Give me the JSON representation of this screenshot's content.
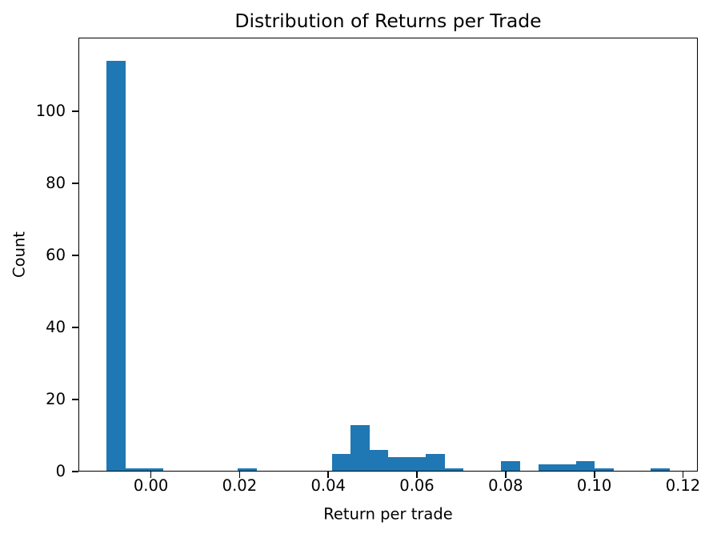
{
  "figure": {
    "title": "Distribution of Returns per Trade",
    "xlabel": "Return per trade",
    "ylabel": "Count",
    "background_color": "#ffffff",
    "bar_color": "#1f77b4",
    "axis_color": "#000000",
    "text_color": "#000000"
  },
  "chart_data": {
    "type": "bar",
    "subtype": "histogram",
    "title": "Distribution of Returns per Trade",
    "xlabel": "Return per trade",
    "ylabel": "Count",
    "bin_start": -0.01,
    "bin_width": 0.0042333,
    "num_bins": 30,
    "counts": [
      114,
      1,
      1,
      0,
      0,
      0,
      0,
      1,
      0,
      0,
      0,
      0,
      5,
      13,
      6,
      4,
      4,
      5,
      1,
      0,
      0,
      3,
      0,
      2,
      2,
      3,
      1,
      0,
      0,
      1
    ],
    "total_count": 167,
    "xlim": [
      -0.01635,
      0.12335
    ],
    "ylim": [
      0,
      120.5
    ],
    "x_ticks": [
      0.0,
      0.02,
      0.04,
      0.06,
      0.08,
      0.1,
      0.12
    ],
    "x_tick_labels": [
      "0.00",
      "0.02",
      "0.04",
      "0.06",
      "0.08",
      "0.10",
      "0.12"
    ],
    "y_ticks": [
      0,
      20,
      40,
      60,
      80,
      100
    ],
    "y_tick_labels": [
      "0",
      "20",
      "40",
      "60",
      "80",
      "100"
    ],
    "grid": false,
    "legend": null,
    "bar_color": "#1f77b4"
  }
}
